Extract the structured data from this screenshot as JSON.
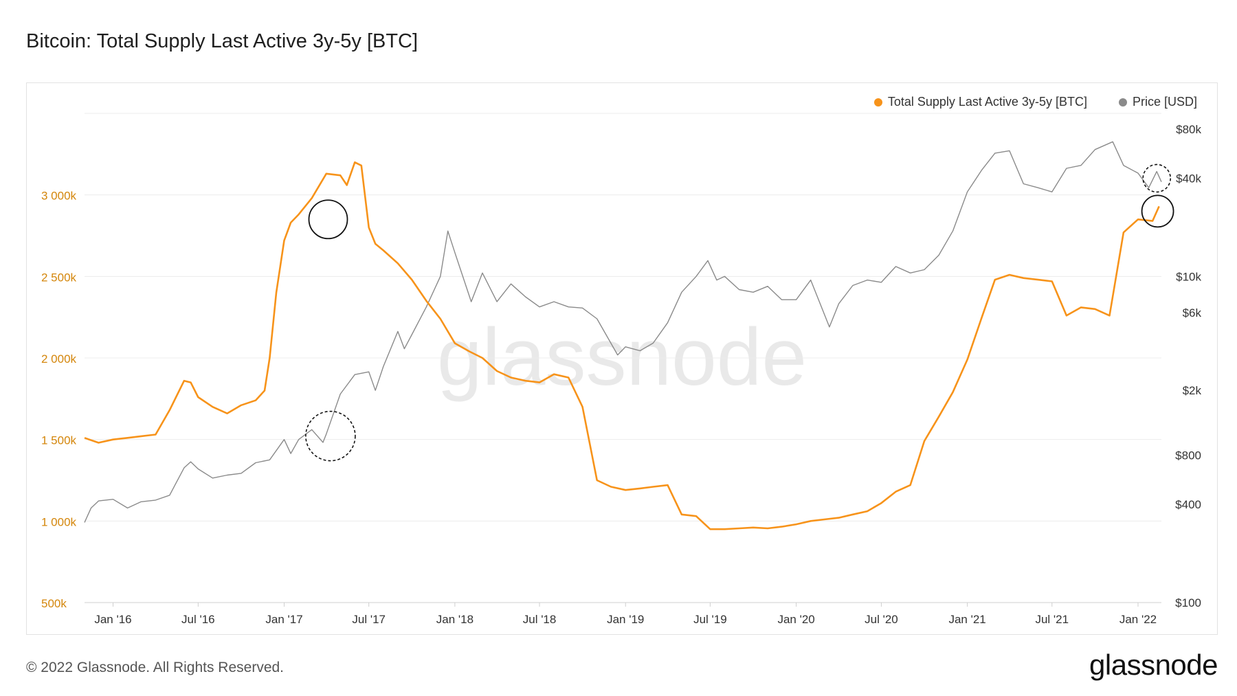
{
  "title": "Bitcoin: Total Supply Last Active 3y-5y [BTC]",
  "footer": {
    "copyright": "© 2022 Glassnode. All Rights Reserved.",
    "logo": "glassnode"
  },
  "watermark": "glassnode",
  "colors": {
    "supply": "#f7931a",
    "price": "#8a8a8a",
    "grid": "#ececec",
    "left_axis_text": "#d4860b",
    "right_axis_text": "#333333"
  },
  "chart_data": {
    "type": "line",
    "title": "Bitcoin: Total Supply Last Active 3y-5y [BTC]",
    "x_ticks": [
      "Jan '16",
      "Jul '16",
      "Jan '17",
      "Jul '17",
      "Jan '18",
      "Jul '18",
      "Jan '19",
      "Jul '19",
      "Jan '20",
      "Jul '20",
      "Jan '21",
      "Jul '21",
      "Jan '22"
    ],
    "x_range": [
      "2015-11-01",
      "2022-02-20"
    ],
    "left_axis": {
      "ticks": [
        500000,
        1000000,
        1500000,
        2000000,
        2500000,
        3000000
      ],
      "tick_labels": [
        "500k",
        "1 000k",
        "1 500k",
        "2 000k",
        "2 500k",
        "3 000k"
      ],
      "ylim": [
        500000,
        3500000
      ]
    },
    "right_axis": {
      "scale": "log",
      "ticks": [
        100,
        400,
        800,
        2000,
        6000,
        10000,
        40000,
        80000
      ],
      "tick_labels": [
        "$100",
        "$400",
        "$800",
        "$2k",
        "$6k",
        "$10k",
        "$40k",
        "$80k"
      ],
      "ylim": [
        100,
        100000
      ]
    },
    "legend_position": "top-right",
    "series": [
      {
        "name": "Total Supply Last Active 3y-5y [BTC]",
        "axis": "left",
        "color": "#f7931a",
        "x": [
          "2015-11-01",
          "2015-12-01",
          "2016-01-01",
          "2016-02-01",
          "2016-03-01",
          "2016-04-01",
          "2016-05-01",
          "2016-06-01",
          "2016-06-15",
          "2016-07-01",
          "2016-08-01",
          "2016-09-01",
          "2016-10-01",
          "2016-11-01",
          "2016-11-20",
          "2016-12-01",
          "2016-12-15",
          "2017-01-01",
          "2017-01-15",
          "2017-02-01",
          "2017-03-01",
          "2017-04-01",
          "2017-05-01",
          "2017-05-15",
          "2017-06-01",
          "2017-06-15",
          "2017-07-01",
          "2017-07-15",
          "2017-08-01",
          "2017-09-01",
          "2017-10-01",
          "2017-11-01",
          "2017-12-01",
          "2018-01-01",
          "2018-02-01",
          "2018-03-01",
          "2018-04-01",
          "2018-05-01",
          "2018-06-01",
          "2018-07-01",
          "2018-08-01",
          "2018-09-01",
          "2018-10-01",
          "2018-11-01",
          "2018-12-01",
          "2019-01-01",
          "2019-02-01",
          "2019-03-01",
          "2019-04-01",
          "2019-05-01",
          "2019-06-01",
          "2019-07-01",
          "2019-08-01",
          "2019-09-01",
          "2019-10-01",
          "2019-11-01",
          "2019-12-01",
          "2020-01-01",
          "2020-02-01",
          "2020-03-01",
          "2020-04-01",
          "2020-05-01",
          "2020-06-01",
          "2020-07-01",
          "2020-08-01",
          "2020-09-01",
          "2020-10-01",
          "2020-11-01",
          "2020-12-01",
          "2021-01-01",
          "2021-02-01",
          "2021-03-01",
          "2021-04-01",
          "2021-05-01",
          "2021-06-01",
          "2021-07-01",
          "2021-08-01",
          "2021-09-01",
          "2021-10-01",
          "2021-11-01",
          "2021-12-01",
          "2022-01-01",
          "2022-02-01",
          "2022-02-15"
        ],
        "values": [
          1510000,
          1480000,
          1500000,
          1510000,
          1520000,
          1530000,
          1680000,
          1860000,
          1850000,
          1760000,
          1700000,
          1660000,
          1710000,
          1740000,
          1800000,
          2000000,
          2400000,
          2720000,
          2830000,
          2880000,
          2980000,
          3130000,
          3120000,
          3060000,
          3200000,
          3180000,
          2800000,
          2700000,
          2660000,
          2580000,
          2480000,
          2350000,
          2240000,
          2090000,
          2040000,
          2000000,
          1920000,
          1880000,
          1860000,
          1850000,
          1900000,
          1880000,
          1700000,
          1250000,
          1210000,
          1190000,
          1200000,
          1210000,
          1220000,
          1040000,
          1030000,
          950000,
          950000,
          955000,
          960000,
          955000,
          965000,
          980000,
          1000000,
          1010000,
          1020000,
          1040000,
          1060000,
          1110000,
          1180000,
          1220000,
          1490000,
          1640000,
          1790000,
          1990000,
          2250000,
          2480000,
          2510000,
          2490000,
          2480000,
          2470000,
          2260000,
          2310000,
          2300000,
          2260000,
          2770000,
          2850000,
          2840000,
          2930000
        ]
      },
      {
        "name": "Price [USD]",
        "axis": "right",
        "color": "#8a8a8a",
        "x": [
          "2015-11-01",
          "2015-11-15",
          "2015-12-01",
          "2016-01-01",
          "2016-02-01",
          "2016-03-01",
          "2016-04-01",
          "2016-05-01",
          "2016-06-01",
          "2016-06-15",
          "2016-07-01",
          "2016-08-01",
          "2016-09-01",
          "2016-10-01",
          "2016-11-01",
          "2016-12-01",
          "2017-01-01",
          "2017-01-15",
          "2017-02-01",
          "2017-03-01",
          "2017-03-25",
          "2017-04-01",
          "2017-05-01",
          "2017-06-01",
          "2017-07-01",
          "2017-07-15",
          "2017-08-01",
          "2017-09-01",
          "2017-09-15",
          "2017-10-01",
          "2017-11-01",
          "2017-12-01",
          "2017-12-17",
          "2018-01-01",
          "2018-02-05",
          "2018-03-01",
          "2018-04-01",
          "2018-05-01",
          "2018-06-01",
          "2018-07-01",
          "2018-08-01",
          "2018-09-01",
          "2018-10-01",
          "2018-11-01",
          "2018-12-15",
          "2019-01-01",
          "2019-02-01",
          "2019-03-01",
          "2019-04-01",
          "2019-05-01",
          "2019-06-01",
          "2019-06-26",
          "2019-07-15",
          "2019-08-01",
          "2019-09-01",
          "2019-10-01",
          "2019-11-01",
          "2019-12-01",
          "2020-01-01",
          "2020-02-01",
          "2020-03-12",
          "2020-04-01",
          "2020-05-01",
          "2020-06-01",
          "2020-07-01",
          "2020-08-01",
          "2020-09-01",
          "2020-10-01",
          "2020-11-01",
          "2020-12-01",
          "2021-01-01",
          "2021-02-01",
          "2021-03-01",
          "2021-04-01",
          "2021-05-01",
          "2021-06-01",
          "2021-07-01",
          "2021-08-01",
          "2021-09-01",
          "2021-10-01",
          "2021-11-08",
          "2021-12-01",
          "2022-01-01",
          "2022-01-24",
          "2022-02-10",
          "2022-02-20"
        ],
        "values": [
          310,
          380,
          420,
          430,
          380,
          415,
          425,
          455,
          670,
          730,
          660,
          580,
          605,
          620,
          720,
          750,
          1000,
          820,
          1000,
          1150,
          960,
          1080,
          1900,
          2500,
          2600,
          2000,
          2800,
          4600,
          3600,
          4400,
          6500,
          10000,
          19000,
          14000,
          7000,
          10500,
          7000,
          9000,
          7500,
          6500,
          7000,
          6500,
          6400,
          5500,
          3300,
          3700,
          3500,
          3900,
          5200,
          8000,
          10000,
          12500,
          9500,
          10000,
          8300,
          8000,
          8700,
          7200,
          7200,
          9500,
          4900,
          6800,
          8800,
          9500,
          9200,
          11500,
          10500,
          11000,
          13500,
          19000,
          33000,
          45000,
          57000,
          59000,
          37000,
          35000,
          33000,
          46000,
          48000,
          60000,
          67000,
          48000,
          43000,
          35000,
          44000,
          38000
        ]
      }
    ],
    "annotations": [
      "dashed circle on price near Apr 2017",
      "solid circle on supply near Apr 2017",
      "dashed circle on price near Feb 2022",
      "solid circle on supply near Feb 2022"
    ]
  }
}
